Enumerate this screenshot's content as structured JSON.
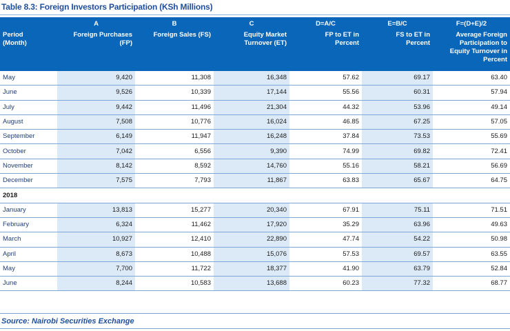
{
  "title": "Table 8.3: Foreign Investors Participation (KSh Millions)",
  "header": {
    "letters": [
      "",
      "A",
      "B",
      "C",
      "D=A/C",
      "E=B/C",
      "F=(D+E)/2"
    ],
    "labels": [
      "Period\n(Month)",
      "Foreign Purchases\n(FP)",
      "Foreign Sales (FS)",
      "Equity Market\nTurnover (ET)",
      "FP to ET in\nPercent",
      "FS to ET in\nPercent",
      "Average Foreign\nParticipation to\nEquity Turnover in\nPercent"
    ]
  },
  "rows_2017": [
    [
      "May",
      "9,420",
      "11,308",
      "16,348",
      "57.62",
      "69.17",
      "63.40"
    ],
    [
      "June",
      "9,526",
      "10,339",
      "17,144",
      "55.56",
      "60.31",
      "57.94"
    ],
    [
      "July",
      "9,442",
      "11,496",
      "21,304",
      "44.32",
      "53.96",
      "49.14"
    ],
    [
      "August",
      "7,508",
      "10,776",
      "16,024",
      "46.85",
      "67.25",
      "57.05"
    ],
    [
      "September",
      "6,149",
      "11,947",
      "16,248",
      "37.84",
      "73.53",
      "55.69"
    ],
    [
      "October",
      "7,042",
      "6,556",
      "9,390",
      "74.99",
      "69.82",
      "72.41"
    ],
    [
      "November",
      "8,142",
      "8,592",
      "14,760",
      "55.16",
      "58.21",
      "56.69"
    ],
    [
      "December",
      "7,575",
      "7,793",
      "11,867",
      "63.83",
      "65.67",
      "64.75"
    ]
  ],
  "section_2018": "2018",
  "rows_2018": [
    [
      "January",
      "13,813",
      "15,277",
      "20,340",
      "67.91",
      "75.11",
      "71.51"
    ],
    [
      "February",
      "6,324",
      "11,462",
      "17,920",
      "35.29",
      "63.96",
      "49.63"
    ],
    [
      "March",
      "10,927",
      "12,410",
      "22,890",
      "47.74",
      "54.22",
      "50.98"
    ],
    [
      "April",
      "8,673",
      "10,488",
      "15,076",
      "57.53",
      "69.57",
      "63.55"
    ],
    [
      "May",
      "7,700",
      "11,722",
      "18,377",
      "41.90",
      "63.79",
      "52.84"
    ],
    [
      "June",
      "8,244",
      "10,583",
      "13,688",
      "60.23",
      "77.32",
      "68.77"
    ]
  ],
  "source": "Source: Nairobi Securities Exchange",
  "colors": {
    "header_bg": "#0a66b8",
    "alt_col_bg": "#dceaf7",
    "title": "#1f4e9c",
    "rule": "#7ea6d4"
  }
}
